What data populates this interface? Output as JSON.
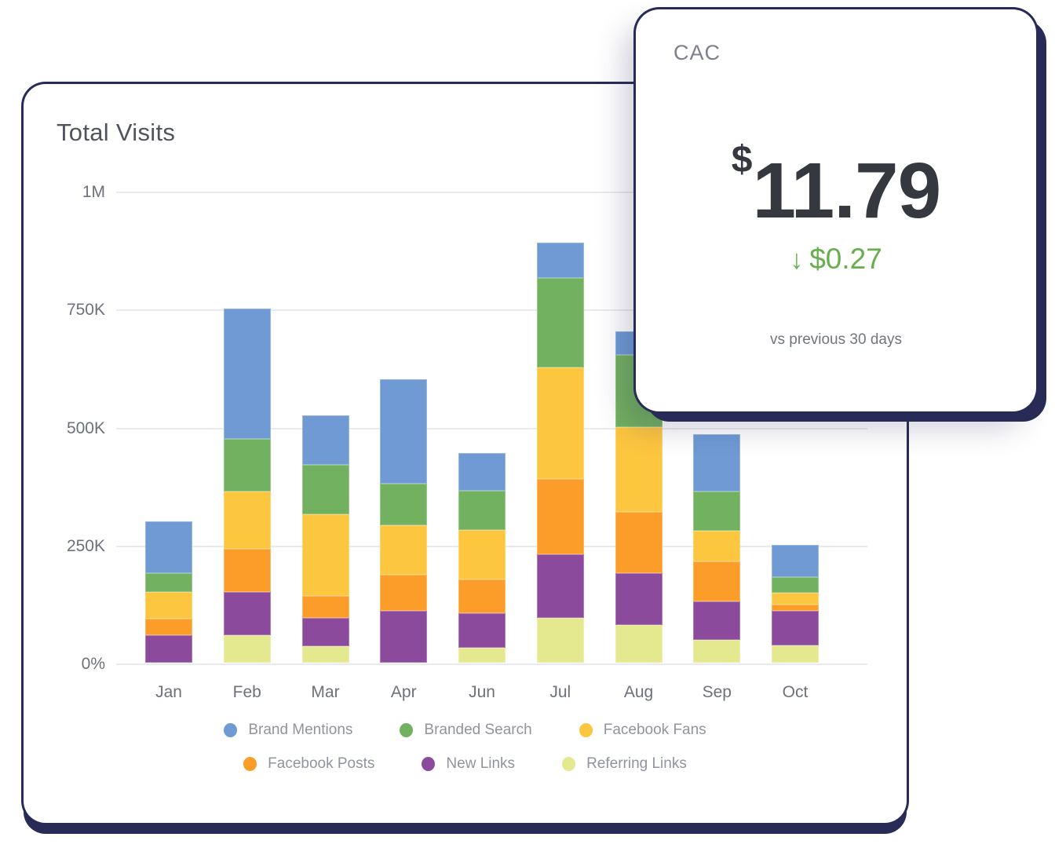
{
  "cards": {
    "total_visits": {
      "title": "Total Visits"
    },
    "cac": {
      "title": "CAC",
      "currency_symbol": "$",
      "value": "11.79",
      "delta_arrow": "↓",
      "delta": "$0.27",
      "delta_color": "#68ae4e",
      "comparison_label": "vs previous 30 days"
    }
  },
  "chart_data": {
    "type": "bar",
    "stacked": true,
    "title": "Total Visits",
    "xlabel": "",
    "ylabel": "",
    "unit": "visits (thousands)",
    "categories": [
      "Jan",
      "Feb",
      "Mar",
      "Apr",
      "Jun",
      "Jul",
      "Aug",
      "Sep",
      "Oct"
    ],
    "y_ticks": [
      "1M",
      "750K",
      "500K",
      "250K",
      "0%"
    ],
    "ylim_k": [
      0,
      1000
    ],
    "grid": true,
    "legend_position": "bottom",
    "series": [
      {
        "name": "Brand Mentions",
        "color": "#6f9ad4",
        "values_k": [
          110,
          276,
          105,
          220,
          81,
          75,
          50,
          122,
          68
        ]
      },
      {
        "name": "Branded Search",
        "color": "#72b15f",
        "values_k": [
          39,
          112,
          105,
          88,
          83,
          190,
          152,
          83,
          34
        ]
      },
      {
        "name": "Facebook Fans",
        "color": "#fdc63f",
        "values_k": [
          56,
          120,
          173,
          106,
          105,
          235,
          180,
          65,
          25
        ]
      },
      {
        "name": "Facebook Posts",
        "color": "#fb9d28",
        "values_k": [
          36,
          93,
          47,
          76,
          71,
          160,
          130,
          85,
          13
        ]
      },
      {
        "name": "New Links",
        "color": "#8c4a9d",
        "values_k": [
          58,
          91,
          60,
          110,
          74,
          135,
          110,
          81,
          74
        ]
      },
      {
        "name": "Referring Links",
        "color": "#e4e88e",
        "values_k": [
          0,
          58,
          35,
          0,
          31,
          95,
          80,
          49,
          36
        ]
      }
    ],
    "totals_k": [
      299,
      750,
      525,
      600,
      445,
      890,
      702,
      485,
      250
    ],
    "stack_order_bottom_to_top": [
      "Referring Links",
      "New Links",
      "Facebook Posts",
      "Facebook Fans",
      "Branded Search",
      "Brand Mentions"
    ],
    "legend_rows": [
      [
        "Brand Mentions",
        "Branded Search",
        "Facebook Fans"
      ],
      [
        "Facebook Posts",
        "New Links",
        "Referring Links"
      ]
    ]
  },
  "theme": {
    "shadow_navy": "#272b55",
    "gridline": "#e9eaed",
    "axis_text": "#6c717b",
    "legend_text": "#8f949e",
    "title_text": "#50545e",
    "value_text": "#35393f"
  }
}
